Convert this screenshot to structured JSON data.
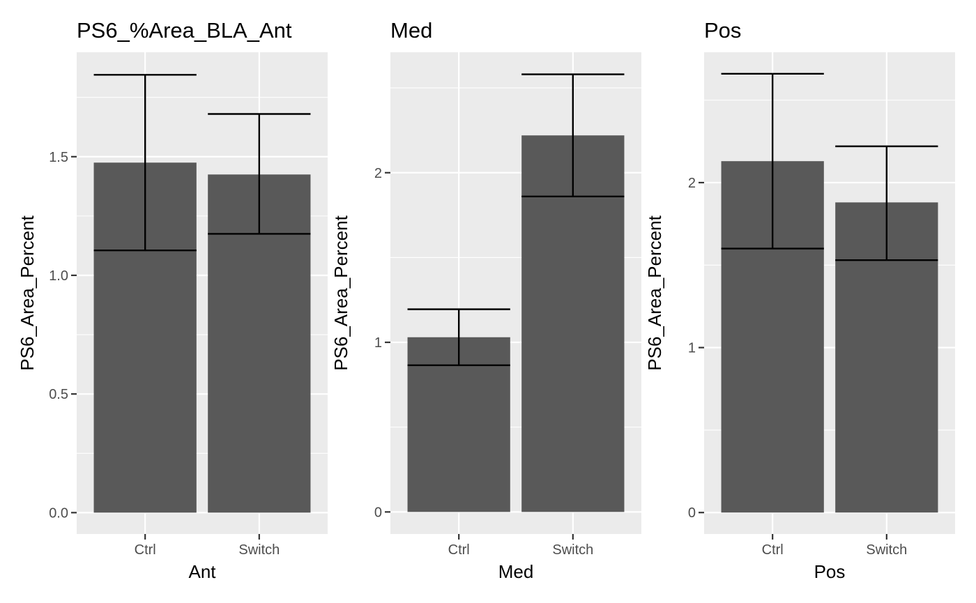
{
  "chart_data": [
    {
      "type": "bar",
      "title": "PS6_%Area_BLA_Ant",
      "xlabel": "Ant",
      "ylabel": "PS6_Area_Percent",
      "categories": [
        "Ctrl",
        "Switch"
      ],
      "values": [
        1.475,
        1.425
      ],
      "error_low": [
        1.105,
        1.175
      ],
      "error_high": [
        1.845,
        1.68
      ],
      "ylim": [
        -0.09,
        1.94
      ],
      "yticks": [
        0.0,
        0.5,
        1.0,
        1.5
      ],
      "ytick_labels": [
        "0.0",
        "0.5",
        "1.0",
        "1.5"
      ],
      "grid": true
    },
    {
      "type": "bar",
      "title": "Med",
      "xlabel": "Med",
      "ylabel": "PS6_Area_Percent",
      "categories": [
        "Ctrl",
        "Switch"
      ],
      "values": [
        1.03,
        2.22
      ],
      "error_low": [
        0.865,
        1.86
      ],
      "error_high": [
        1.195,
        2.58
      ],
      "ylim": [
        -0.13,
        2.71
      ],
      "yticks": [
        0,
        1,
        2
      ],
      "ytick_labels": [
        "0",
        "1",
        "2"
      ],
      "grid": true
    },
    {
      "type": "bar",
      "title": "Pos",
      "xlabel": "Pos",
      "ylabel": "PS6_Area_Percent",
      "categories": [
        "Ctrl",
        "Switch"
      ],
      "values": [
        2.13,
        1.88
      ],
      "error_low": [
        1.6,
        1.53
      ],
      "error_high": [
        2.66,
        2.22
      ],
      "ylim": [
        -0.13,
        2.79
      ],
      "yticks": [
        0,
        1,
        2
      ],
      "ytick_labels": [
        "0",
        "1",
        "2"
      ],
      "grid": true
    }
  ]
}
